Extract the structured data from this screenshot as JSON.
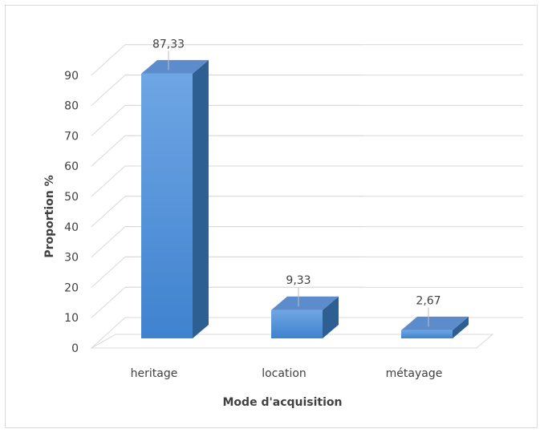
{
  "chart_data": {
    "type": "bar",
    "categories": [
      "heritage",
      "location",
      "métayage"
    ],
    "values": [
      87.33,
      9.33,
      2.67
    ],
    "value_labels": [
      "87,33",
      "9,33",
      "2,67"
    ],
    "xlabel": "Mode d'acquisition",
    "ylabel": "Proportion %",
    "ylim": [
      0,
      90
    ],
    "yticks": [
      "0",
      "10",
      "20",
      "30",
      "40",
      "50",
      "60",
      "70",
      "80",
      "90"
    ],
    "grid": true,
    "style": "3d-column",
    "colors": {
      "front_top": "#6fa6e4",
      "front_bottom": "#3f82cf",
      "side": "#2d5f93",
      "top": "#5d8ccc",
      "grid": "#d9d9d9"
    }
  }
}
